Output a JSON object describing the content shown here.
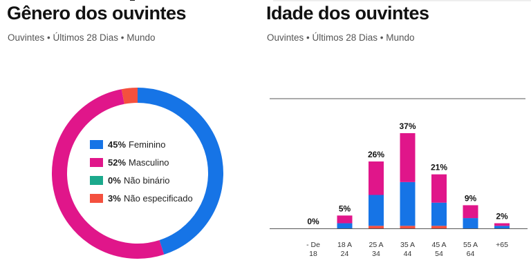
{
  "colors": {
    "feminino": "#1674e6",
    "masculino": "#e0168a",
    "nao_binario": "#1ba98c",
    "nao_especificado": "#f4503e",
    "axis": "#555555"
  },
  "gender": {
    "title": "Gênero dos ouvintes",
    "subtitle": "Ouvintes • Últimos 28 Dias • Mundo",
    "legend": [
      {
        "pct": "45%",
        "label": "Feminino",
        "color_key": "feminino"
      },
      {
        "pct": "52%",
        "label": "Masculino",
        "color_key": "masculino"
      },
      {
        "pct": "0%",
        "label": "Não binário",
        "color_key": "nao_binario"
      },
      {
        "pct": "3%",
        "label": "Não especificado",
        "color_key": "nao_especificado"
      }
    ]
  },
  "age": {
    "title": "Idade dos ouvintes",
    "subtitle": "Ouvintes • Últimos 28 Dias • Mundo"
  },
  "chart_data": [
    {
      "type": "pie",
      "title": "Gênero dos ouvintes",
      "donut": true,
      "categories": [
        "Feminino",
        "Masculino",
        "Não binário",
        "Não especificado"
      ],
      "values": [
        45,
        52,
        0,
        3
      ],
      "unit": "%"
    },
    {
      "type": "bar",
      "stacked": true,
      "title": "Idade dos ouvintes",
      "categories": [
        "- De 18",
        "18 A 24",
        "25 A 34",
        "35 A 44",
        "45 A 54",
        "55 A 64",
        "+65"
      ],
      "totals_labels": [
        "0%",
        "5%",
        "26%",
        "37%",
        "21%",
        "9%",
        "2%"
      ],
      "series": [
        {
          "name": "Feminino",
          "color_key": "feminino",
          "values": [
            0,
            2,
            12,
            17,
            9,
            4,
            1
          ]
        },
        {
          "name": "Masculino",
          "color_key": "masculino",
          "values": [
            0,
            3,
            13,
            19,
            11,
            5,
            1
          ]
        },
        {
          "name": "Não especificado",
          "color_key": "nao_especificado",
          "values": [
            0,
            0,
            1,
            1,
            1,
            0,
            0
          ]
        }
      ],
      "ylim": [
        0,
        50
      ]
    }
  ]
}
